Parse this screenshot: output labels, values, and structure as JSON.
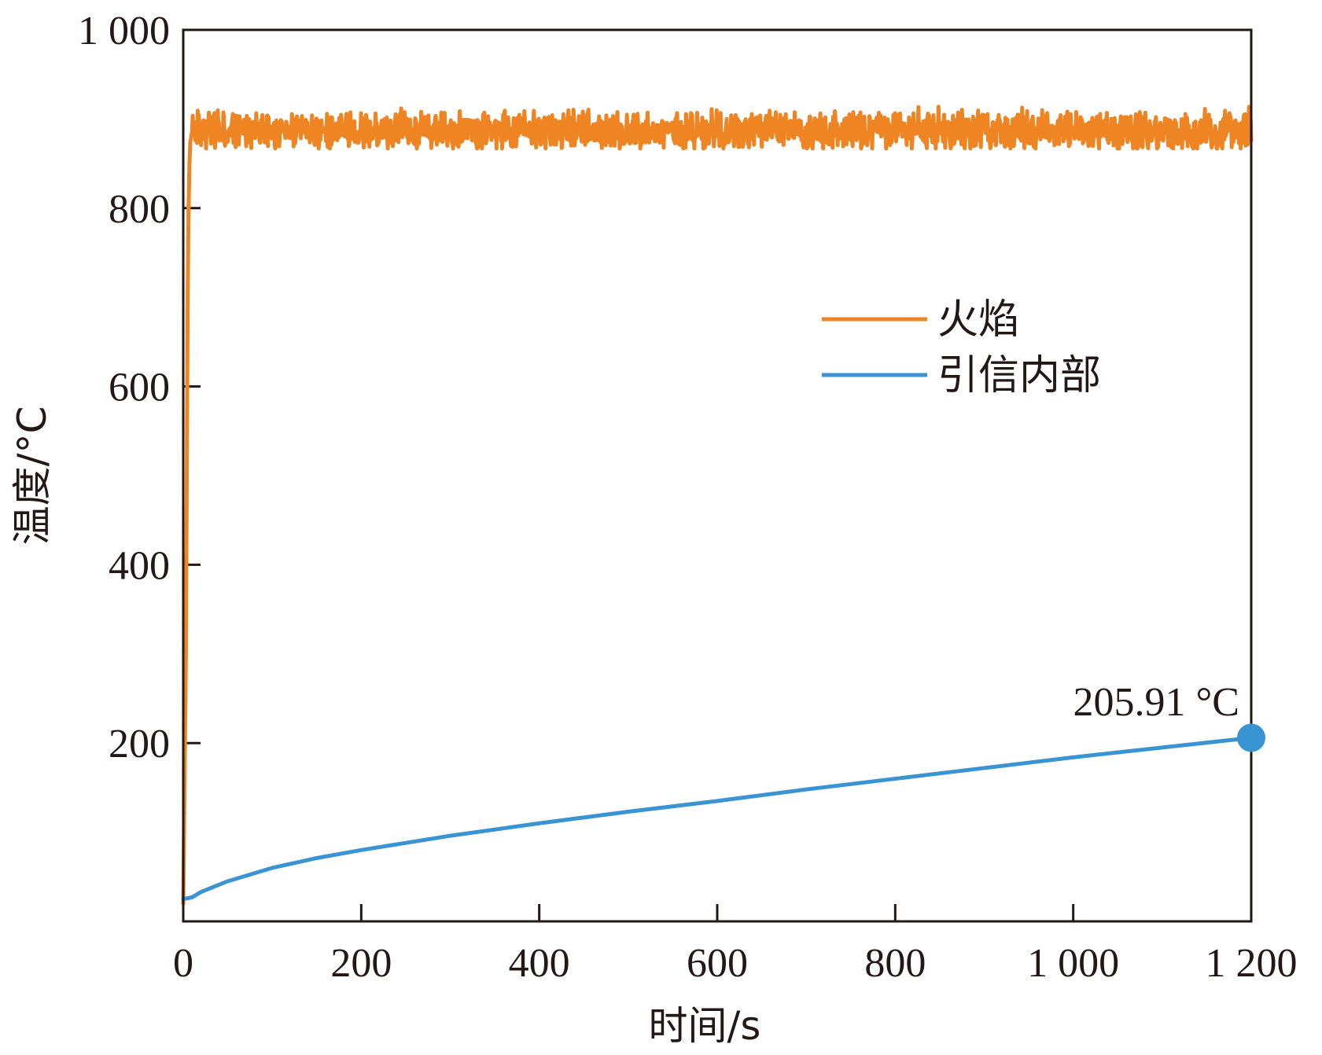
{
  "chart_data": {
    "type": "line",
    "title": "",
    "xlabel": "时间/s",
    "ylabel": "温度/°C",
    "xlim": [
      0,
      1200
    ],
    "ylim": [
      0,
      1000
    ],
    "x_ticks": [
      0,
      200,
      400,
      600,
      800,
      1000,
      1200
    ],
    "y_ticks": [
      200,
      400,
      600,
      800,
      1000
    ],
    "x_tick_labels": [
      "0",
      "200",
      "400",
      "600",
      "800",
      "1 000",
      "1 200"
    ],
    "y_tick_labels": [
      "200",
      "400",
      "600",
      "800",
      "1 000"
    ],
    "legend": {
      "position": "upper-right-inside",
      "entries": [
        "火焰",
        "引信内部"
      ]
    },
    "colors": {
      "flame": "#EE8422",
      "fuze": "#3A93D2",
      "axis": "#231815"
    },
    "series": [
      {
        "name": "火焰",
        "color": "#EE8422",
        "x": [
          0,
          3,
          5,
          6,
          7,
          8,
          9,
          10,
          1200
        ],
        "y": [
          20,
          300,
          700,
          800,
          850,
          875,
          880,
          887,
          887
        ],
        "fluctuation": {
          "mean": 887,
          "range": [
            867,
            915
          ],
          "x_start": 10,
          "x_end": 1200
        }
      },
      {
        "name": "引信内部",
        "color": "#3A93D2",
        "x": [
          0,
          10,
          20,
          50,
          100,
          150,
          200,
          300,
          400,
          500,
          600,
          700,
          800,
          900,
          1000,
          1100,
          1200
        ],
        "y": [
          25,
          27,
          33,
          45,
          60,
          71,
          80,
          96,
          110,
          123,
          135,
          148,
          160,
          172,
          184,
          195,
          205.91
        ]
      }
    ],
    "annotations": [
      {
        "x": 1200,
        "y": 205.91,
        "text": "205.91 °C",
        "marker": "circle",
        "color": "#3A93D2"
      }
    ]
  }
}
